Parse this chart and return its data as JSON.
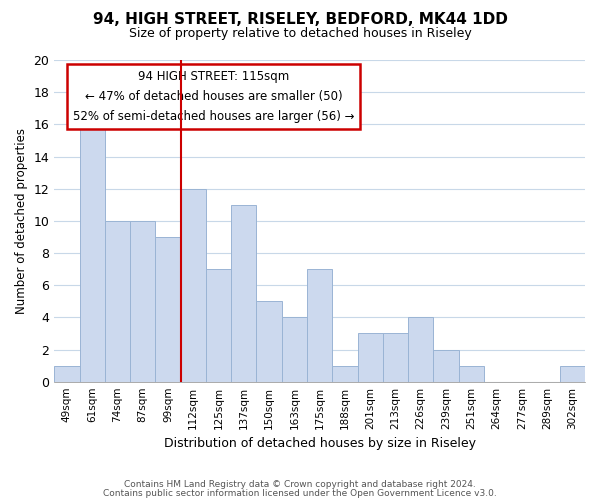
{
  "title": "94, HIGH STREET, RISELEY, BEDFORD, MK44 1DD",
  "subtitle": "Size of property relative to detached houses in Riseley",
  "xlabel": "Distribution of detached houses by size in Riseley",
  "ylabel": "Number of detached properties",
  "bar_labels": [
    "49sqm",
    "61sqm",
    "74sqm",
    "87sqm",
    "99sqm",
    "112sqm",
    "125sqm",
    "137sqm",
    "150sqm",
    "163sqm",
    "175sqm",
    "188sqm",
    "201sqm",
    "213sqm",
    "226sqm",
    "239sqm",
    "251sqm",
    "264sqm",
    "277sqm",
    "289sqm",
    "302sqm"
  ],
  "bar_values": [
    1,
    16,
    10,
    10,
    9,
    12,
    7,
    11,
    5,
    4,
    7,
    1,
    3,
    3,
    4,
    2,
    1,
    0,
    0,
    0,
    1
  ],
  "bar_color": "#ccd9ee",
  "bar_edge_color": "#9ab4d4",
  "highlight_x_label": "112sqm",
  "highlight_line_color": "#cc0000",
  "annotation_title": "94 HIGH STREET: 115sqm",
  "annotation_line1": "← 47% of detached houses are smaller (50)",
  "annotation_line2": "52% of semi-detached houses are larger (56) →",
  "annotation_box_edge_color": "#cc0000",
  "ylim": [
    0,
    20
  ],
  "yticks": [
    0,
    2,
    4,
    6,
    8,
    10,
    12,
    14,
    16,
    18,
    20
  ],
  "footer1": "Contains HM Land Registry data © Crown copyright and database right 2024.",
  "footer2": "Contains public sector information licensed under the Open Government Licence v3.0.",
  "background_color": "#ffffff",
  "grid_color": "#c8d8e8"
}
